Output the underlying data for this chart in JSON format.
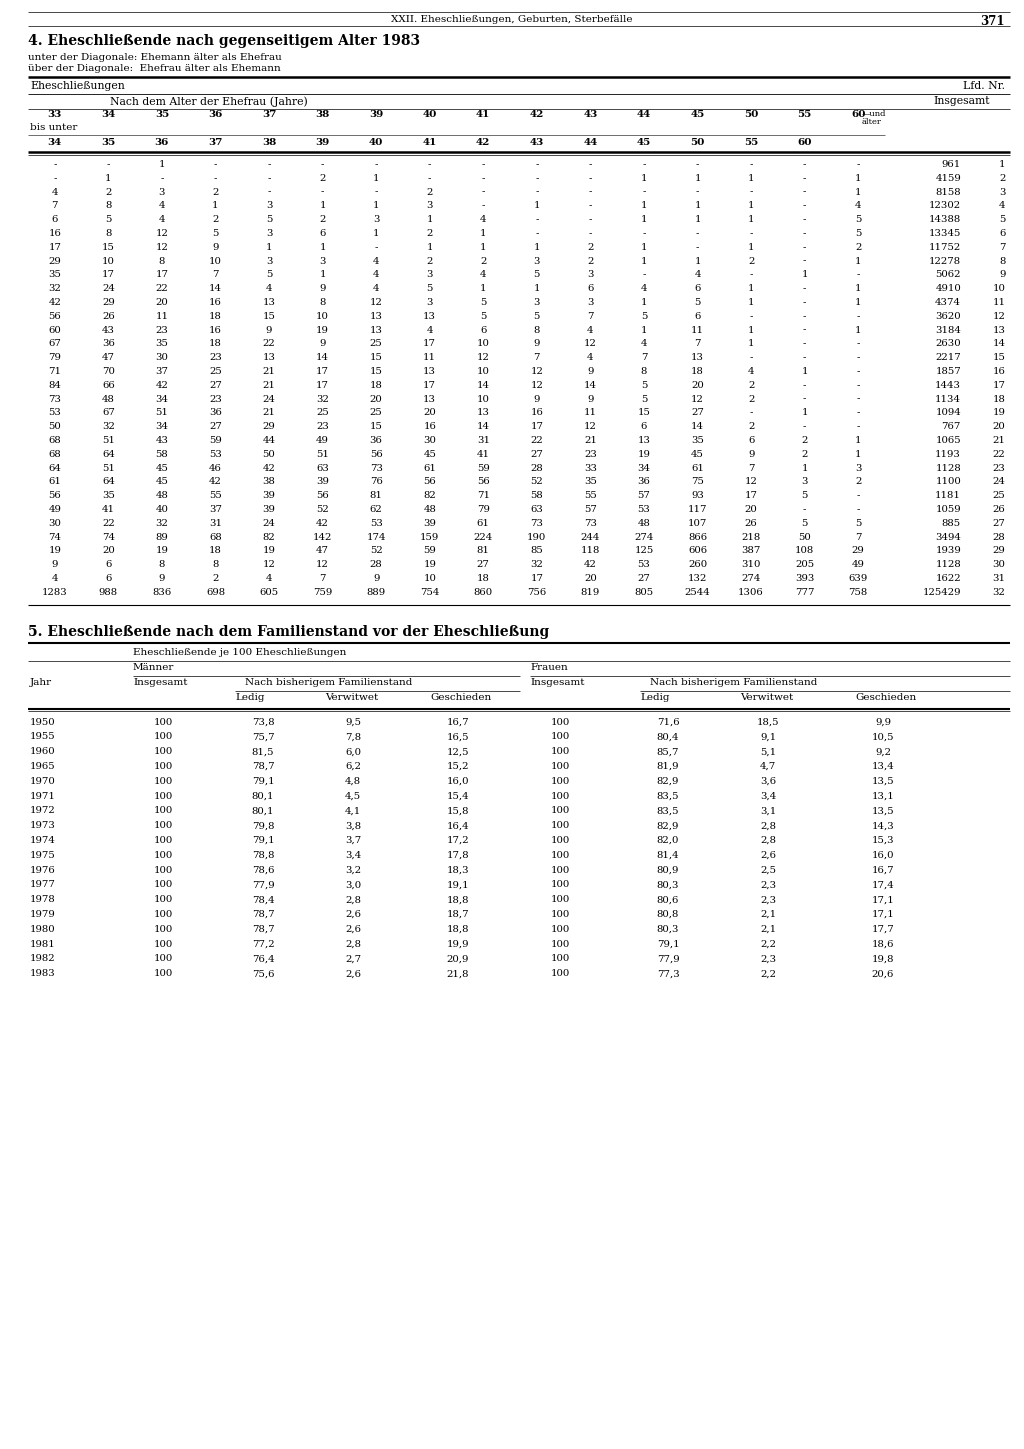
{
  "page_header": "XXII. Eheschließungen, Geburten, Sterbefälle",
  "page_number": "371",
  "section4_title": "4. Eheschließende nach gegenseitigem Alter 1983",
  "section4_note1": "unter der Diagonale: Ehemann älter als Ehefrau",
  "section4_note2": "über der Diagonale:  Ehefrau älter als Ehemann",
  "table4_header_left": "Eheschließungen",
  "table4_header_right": "Lfd. Nr.",
  "table4_subheader": "Nach dem Alter der Ehefrau (Jahre)",
  "table4_insgesamt": "Insgesamt",
  "table4_col1_label": "bis unter",
  "table4_age_cols_top": [
    "33",
    "34",
    "35",
    "36",
    "37",
    "38",
    "39",
    "40",
    "41",
    "42",
    "43",
    "44",
    "45",
    "50",
    "55",
    "60"
  ],
  "table4_age_cols_bottom": [
    "34",
    "35",
    "36",
    "37",
    "38",
    "39",
    "40",
    "41",
    "42",
    "43",
    "44",
    "45",
    "50",
    "55",
    "60"
  ],
  "table4_rows": [
    [
      "-",
      "-",
      "1",
      "-",
      "-",
      "-",
      "-",
      "-",
      "-",
      "-",
      "-",
      "-",
      "-",
      "-",
      "-",
      "-",
      "961",
      "1"
    ],
    [
      "-",
      "1",
      "-",
      "-",
      "-",
      "2",
      "1",
      "-",
      "-",
      "-",
      "-",
      "1",
      "1",
      "1",
      "-",
      "1",
      "4159",
      "2"
    ],
    [
      "4",
      "2",
      "3",
      "2",
      "-",
      "-",
      "-",
      "2",
      "-",
      "-",
      "-",
      "-",
      "-",
      "-",
      "-",
      "1",
      "8158",
      "3"
    ],
    [
      "7",
      "8",
      "4",
      "1",
      "3",
      "1",
      "1",
      "3",
      "-",
      "1",
      "-",
      "1",
      "1",
      "1",
      "-",
      "4",
      "12302",
      "4"
    ],
    [
      "6",
      "5",
      "4",
      "2",
      "5",
      "2",
      "3",
      "1",
      "4",
      "-",
      "-",
      "1",
      "1",
      "1",
      "-",
      "5",
      "14388",
      "5"
    ],
    [
      "16",
      "8",
      "12",
      "5",
      "3",
      "6",
      "1",
      "2",
      "1",
      "-",
      "-",
      "-",
      "-",
      "-",
      "-",
      "5",
      "13345",
      "6"
    ],
    [
      "17",
      "15",
      "12",
      "9",
      "1",
      "1",
      "-",
      "1",
      "1",
      "1",
      "2",
      "1",
      "-",
      "1",
      "-",
      "2",
      "11752",
      "7"
    ],
    [
      "29",
      "10",
      "8",
      "10",
      "3",
      "3",
      "4",
      "2",
      "2",
      "3",
      "2",
      "1",
      "1",
      "2",
      "-",
      "1",
      "12278",
      "8"
    ],
    [
      "35",
      "17",
      "17",
      "7",
      "5",
      "1",
      "4",
      "3",
      "4",
      "5",
      "3",
      "-",
      "4",
      "-",
      "1",
      "-",
      "5062",
      "9"
    ],
    [
      "32",
      "24",
      "22",
      "14",
      "4",
      "9",
      "4",
      "5",
      "1",
      "1",
      "6",
      "4",
      "6",
      "1",
      "-",
      "1",
      "4910",
      "10"
    ],
    [
      "42",
      "29",
      "20",
      "16",
      "13",
      "8",
      "12",
      "3",
      "5",
      "3",
      "3",
      "1",
      "5",
      "1",
      "-",
      "1",
      "4374",
      "11"
    ],
    [
      "56",
      "26",
      "11",
      "18",
      "15",
      "10",
      "13",
      "13",
      "5",
      "5",
      "7",
      "5",
      "6",
      "-",
      "-",
      "-",
      "3620",
      "12"
    ],
    [
      "60",
      "43",
      "23",
      "16",
      "9",
      "19",
      "13",
      "4",
      "6",
      "8",
      "4",
      "1",
      "11",
      "1",
      "-",
      "1",
      "3184",
      "13"
    ],
    [
      "67",
      "36",
      "35",
      "18",
      "22",
      "9",
      "25",
      "17",
      "10",
      "9",
      "12",
      "4",
      "7",
      "1",
      "-",
      "-",
      "2630",
      "14"
    ],
    [
      "79",
      "47",
      "30",
      "23",
      "13",
      "14",
      "15",
      "11",
      "12",
      "7",
      "4",
      "7",
      "13",
      "-",
      "-",
      "-",
      "2217",
      "15"
    ],
    [
      "71",
      "70",
      "37",
      "25",
      "21",
      "17",
      "15",
      "13",
      "10",
      "12",
      "9",
      "8",
      "18",
      "4",
      "1",
      "-",
      "1857",
      "16"
    ],
    [
      "84",
      "66",
      "42",
      "27",
      "21",
      "17",
      "18",
      "17",
      "14",
      "12",
      "14",
      "5",
      "20",
      "2",
      "-",
      "-",
      "1443",
      "17"
    ],
    [
      "73",
      "48",
      "34",
      "23",
      "24",
      "32",
      "20",
      "13",
      "10",
      "9",
      "9",
      "5",
      "12",
      "2",
      "-",
      "-",
      "1134",
      "18"
    ],
    [
      "53",
      "67",
      "51",
      "36",
      "21",
      "25",
      "25",
      "20",
      "13",
      "16",
      "11",
      "15",
      "27",
      "-",
      "1",
      "-",
      "1094",
      "19"
    ],
    [
      "50",
      "32",
      "34",
      "27",
      "29",
      "23",
      "15",
      "16",
      "14",
      "17",
      "12",
      "6",
      "14",
      "2",
      "-",
      "-",
      "767",
      "20"
    ],
    [
      "68",
      "51",
      "43",
      "59",
      "44",
      "49",
      "36",
      "30",
      "31",
      "22",
      "21",
      "13",
      "35",
      "6",
      "2",
      "1",
      "1065",
      "21"
    ],
    [
      "68",
      "64",
      "58",
      "53",
      "50",
      "51",
      "56",
      "45",
      "41",
      "27",
      "23",
      "19",
      "45",
      "9",
      "2",
      "1",
      "1193",
      "22"
    ],
    [
      "64",
      "51",
      "45",
      "46",
      "42",
      "63",
      "73",
      "61",
      "59",
      "28",
      "33",
      "34",
      "61",
      "7",
      "1",
      "3",
      "1128",
      "23"
    ],
    [
      "61",
      "64",
      "45",
      "42",
      "38",
      "39",
      "76",
      "56",
      "56",
      "52",
      "35",
      "36",
      "75",
      "12",
      "3",
      "2",
      "1100",
      "24"
    ],
    [
      "56",
      "35",
      "48",
      "55",
      "39",
      "56",
      "81",
      "82",
      "71",
      "58",
      "55",
      "57",
      "93",
      "17",
      "5",
      "-",
      "1181",
      "25"
    ],
    [
      "49",
      "41",
      "40",
      "37",
      "39",
      "52",
      "62",
      "48",
      "79",
      "63",
      "57",
      "53",
      "117",
      "20",
      "-",
      "-",
      "1059",
      "26"
    ],
    [
      "30",
      "22",
      "32",
      "31",
      "24",
      "42",
      "53",
      "39",
      "61",
      "73",
      "73",
      "48",
      "107",
      "26",
      "5",
      "5",
      "885",
      "27"
    ],
    [
      "74",
      "74",
      "89",
      "68",
      "82",
      "142",
      "174",
      "159",
      "224",
      "190",
      "244",
      "274",
      "866",
      "218",
      "50",
      "7",
      "3494",
      "28"
    ],
    [
      "19",
      "20",
      "19",
      "18",
      "19",
      "47",
      "52",
      "59",
      "81",
      "85",
      "118",
      "125",
      "606",
      "387",
      "108",
      "29",
      "1939",
      "29"
    ],
    [
      "9",
      "6",
      "8",
      "8",
      "12",
      "12",
      "28",
      "19",
      "27",
      "32",
      "42",
      "53",
      "260",
      "310",
      "205",
      "49",
      "1128",
      "30"
    ],
    [
      "4",
      "6",
      "9",
      "2",
      "4",
      "7",
      "9",
      "10",
      "18",
      "17",
      "20",
      "27",
      "132",
      "274",
      "393",
      "639",
      "1622",
      "31"
    ],
    [
      "1283",
      "988",
      "836",
      "698",
      "605",
      "759",
      "889",
      "754",
      "860",
      "756",
      "819",
      "805",
      "2544",
      "1306",
      "777",
      "758",
      "125429",
      "32"
    ]
  ],
  "section5_title": "5. Eheschließende nach dem Familienstand vor der Eheschließung",
  "table5_col_jahr": "Jahr",
  "table5_header1": "Eheschließende je 100 Eheschließungen",
  "table5_maenner": "Männer",
  "table5_frauen": "Frauen",
  "table5_insgesamt": "Insgesamt",
  "table5_nach": "Nach bisherigem Familienstand",
  "table5_ledig": "Ledig",
  "table5_verwitwet": "Verwitwet",
  "table5_geschieden": "Geschieden",
  "table5_rows": [
    [
      "1950",
      "100",
      "73,8",
      "9,5",
      "16,7",
      "100",
      "71,6",
      "18,5",
      "9,9"
    ],
    [
      "1955",
      "100",
      "75,7",
      "7,8",
      "16,5",
      "100",
      "80,4",
      "9,1",
      "10,5"
    ],
    [
      "1960",
      "100",
      "81,5",
      "6,0",
      "12,5",
      "100",
      "85,7",
      "5,1",
      "9,2"
    ],
    [
      "1965",
      "100",
      "78,7",
      "6,2",
      "15,2",
      "100",
      "81,9",
      "4,7",
      "13,4"
    ],
    [
      "1970",
      "100",
      "79,1",
      "4,8",
      "16,0",
      "100",
      "82,9",
      "3,6",
      "13,5"
    ],
    [
      "1971",
      "100",
      "80,1",
      "4,5",
      "15,4",
      "100",
      "83,5",
      "3,4",
      "13,1"
    ],
    [
      "1972",
      "100",
      "80,1",
      "4,1",
      "15,8",
      "100",
      "83,5",
      "3,1",
      "13,5"
    ],
    [
      "1973",
      "100",
      "79,8",
      "3,8",
      "16,4",
      "100",
      "82,9",
      "2,8",
      "14,3"
    ],
    [
      "1974",
      "100",
      "79,1",
      "3,7",
      "17,2",
      "100",
      "82,0",
      "2,8",
      "15,3"
    ],
    [
      "1975",
      "100",
      "78,8",
      "3,4",
      "17,8",
      "100",
      "81,4",
      "2,6",
      "16,0"
    ],
    [
      "1976",
      "100",
      "78,6",
      "3,2",
      "18,3",
      "100",
      "80,9",
      "2,5",
      "16,7"
    ],
    [
      "1977",
      "100",
      "77,9",
      "3,0",
      "19,1",
      "100",
      "80,3",
      "2,3",
      "17,4"
    ],
    [
      "1978",
      "100",
      "78,4",
      "2,8",
      "18,8",
      "100",
      "80,6",
      "2,3",
      "17,1"
    ],
    [
      "1979",
      "100",
      "78,7",
      "2,6",
      "18,7",
      "100",
      "80,8",
      "2,1",
      "17,1"
    ],
    [
      "1980",
      "100",
      "78,7",
      "2,6",
      "18,8",
      "100",
      "80,3",
      "2,1",
      "17,7"
    ],
    [
      "1981",
      "100",
      "77,2",
      "2,8",
      "19,9",
      "100",
      "79,1",
      "2,2",
      "18,6"
    ],
    [
      "1982",
      "100",
      "76,4",
      "2,7",
      "20,9",
      "100",
      "77,9",
      "2,3",
      "19,8"
    ],
    [
      "1983",
      "100",
      "75,6",
      "2,6",
      "21,8",
      "100",
      "77,3",
      "2,2",
      "20,6"
    ]
  ]
}
